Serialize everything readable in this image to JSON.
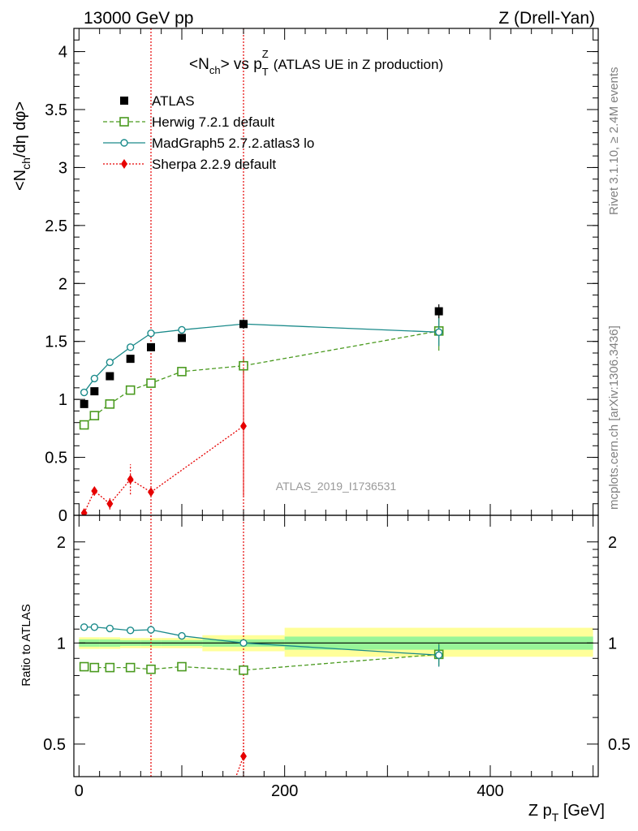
{
  "header": {
    "left": "13000 GeV pp",
    "right": "Z (Drell-Yan)"
  },
  "main_title": {
    "left_part": "<N",
    "sub_ch": "ch",
    "vs": "> vs p",
    "sup_z": "Z",
    "sub_t": "T",
    "right_part": "(ATLAS UE in Z production)"
  },
  "side_text": {
    "rivet": "Rivet 3.1.10, ≥ 2.4M events",
    "mcplots": "mcplots.cern.ch [arXiv:1306.3436]"
  },
  "watermark": "ATLAS_2019_I1736531",
  "ylabel_main": {
    "p1": "<N",
    "sub": "ch",
    "p2": "/dη dφ>"
  },
  "ylabel_ratio": "Ratio to ATLAS",
  "xlabel": {
    "p1": "Z p",
    "sub": "T",
    "p2": " [GeV]"
  },
  "colors": {
    "data": "#000000",
    "herwig": "#4a9a1f",
    "madgraph": "#1a8a8a",
    "sherpa": "#e60000",
    "band_inner": "#98f598",
    "band_outer": "#ffff99"
  },
  "chart_data": [
    {
      "type": "scatter",
      "xlim": [
        -5,
        505
      ],
      "ylim": [
        0,
        4.2
      ],
      "x_ticks": [
        0,
        200,
        400
      ],
      "y_ticks": [
        0,
        0.5,
        1,
        1.5,
        2,
        2.5,
        3,
        3.5,
        4
      ],
      "y_tick_labels": [
        "0",
        "0.5",
        "1",
        "1.5",
        "2",
        "2.5",
        "3",
        "3.5",
        "4"
      ],
      "legend_position": "top-left",
      "vlines": [
        70,
        160
      ],
      "series": [
        {
          "name": "ATLAS",
          "marker": "square-filled",
          "x": [
            5,
            15,
            30,
            50,
            70,
            100,
            160,
            350
          ],
          "y": [
            0.96,
            1.07,
            1.2,
            1.35,
            1.45,
            1.53,
            1.65,
            1.76
          ],
          "err": [
            0.02,
            0.02,
            0.02,
            0.02,
            0.02,
            0.02,
            0.04,
            0.06
          ]
        },
        {
          "name": "Herwig 7.2.1 default",
          "marker": "square-open",
          "line": "dashed",
          "x": [
            5,
            15,
            30,
            50,
            70,
            100,
            160,
            350
          ],
          "y": [
            0.78,
            0.86,
            0.96,
            1.08,
            1.14,
            1.24,
            1.29,
            1.59
          ],
          "err": [
            0.01,
            0.01,
            0.01,
            0.01,
            0.01,
            0.02,
            0.06,
            0.17
          ]
        },
        {
          "name": "MadGraph5 2.7.2.atlas3 lo",
          "marker": "circle-open",
          "line": "solid",
          "x": [
            5,
            15,
            30,
            50,
            70,
            100,
            160,
            350
          ],
          "y": [
            1.06,
            1.18,
            1.32,
            1.45,
            1.57,
            1.6,
            1.65,
            1.58
          ],
          "err": [
            0.01,
            0.01,
            0.01,
            0.01,
            0.01,
            0.01,
            0.04,
            0.12
          ]
        },
        {
          "name": "Sherpa 2.2.9 default",
          "marker": "diamond-filled",
          "line": "dotted",
          "x": [
            5,
            15,
            30,
            50,
            70,
            160
          ],
          "y": [
            0.02,
            0.21,
            0.1,
            0.31,
            0.2,
            0.77
          ],
          "err": [
            0.02,
            0.04,
            0.05,
            0.13,
            0.02,
            0.6
          ]
        }
      ]
    },
    {
      "type": "scatter",
      "xlim": [
        -5,
        505
      ],
      "ylim": [
        0.4,
        2.4
      ],
      "y_ticks": [
        0.5,
        1,
        2
      ],
      "y_tick_labels": [
        "0.5",
        "1",
        "2"
      ],
      "x_ticks": [
        0,
        200,
        400
      ],
      "x_tick_labels": [
        "0",
        "200",
        "400"
      ],
      "y_scale": "log",
      "reference_line": 1,
      "bands": [
        {
          "x0": 0,
          "x1": 10,
          "in_lo": 0.975,
          "in_hi": 1.025,
          "out_lo": 0.96,
          "out_hi": 1.04
        },
        {
          "x0": 10,
          "x1": 20,
          "in_lo": 0.975,
          "in_hi": 1.025,
          "out_lo": 0.96,
          "out_hi": 1.04
        },
        {
          "x0": 20,
          "x1": 40,
          "in_lo": 0.975,
          "in_hi": 1.025,
          "out_lo": 0.96,
          "out_hi": 1.04
        },
        {
          "x0": 40,
          "x1": 60,
          "in_lo": 0.98,
          "in_hi": 1.02,
          "out_lo": 0.965,
          "out_hi": 1.035
        },
        {
          "x0": 60,
          "x1": 80,
          "in_lo": 0.98,
          "in_hi": 1.02,
          "out_lo": 0.965,
          "out_hi": 1.035
        },
        {
          "x0": 80,
          "x1": 120,
          "in_lo": 0.98,
          "in_hi": 1.02,
          "out_lo": 0.965,
          "out_hi": 1.035
        },
        {
          "x0": 120,
          "x1": 200,
          "in_lo": 0.975,
          "in_hi": 1.025,
          "out_lo": 0.945,
          "out_hi": 1.055
        },
        {
          "x0": 200,
          "x1": 500,
          "in_lo": 0.955,
          "in_hi": 1.045,
          "out_lo": 0.91,
          "out_hi": 1.11
        }
      ],
      "series": [
        {
          "name": "Herwig 7.2.1 default",
          "marker": "square-open",
          "line": "dashed",
          "x": [
            5,
            15,
            30,
            50,
            70,
            100,
            160,
            350
          ],
          "y": [
            0.85,
            0.845,
            0.845,
            0.845,
            0.835,
            0.85,
            0.83,
            0.925
          ],
          "err": [
            0.005,
            0.005,
            0.005,
            0.005,
            0.005,
            0.01,
            0.02,
            0.07
          ]
        },
        {
          "name": "MadGraph5 2.7.2.atlas3 lo",
          "marker": "circle-open",
          "line": "solid",
          "x": [
            5,
            15,
            30,
            50,
            70,
            100,
            160,
            350
          ],
          "y": [
            1.115,
            1.115,
            1.105,
            1.09,
            1.095,
            1.05,
            1.0,
            0.92
          ],
          "err": [
            0.005,
            0.005,
            0.005,
            0.005,
            0.005,
            0.005,
            0.015,
            0.07
          ]
        },
        {
          "name": "Sherpa 2.2.9 default",
          "marker": "diamond-filled",
          "line": "dotted",
          "x": [
            150,
            160
          ],
          "y": [
            0.38,
            0.46
          ],
          "err": [
            0,
            0.06
          ]
        }
      ]
    }
  ]
}
